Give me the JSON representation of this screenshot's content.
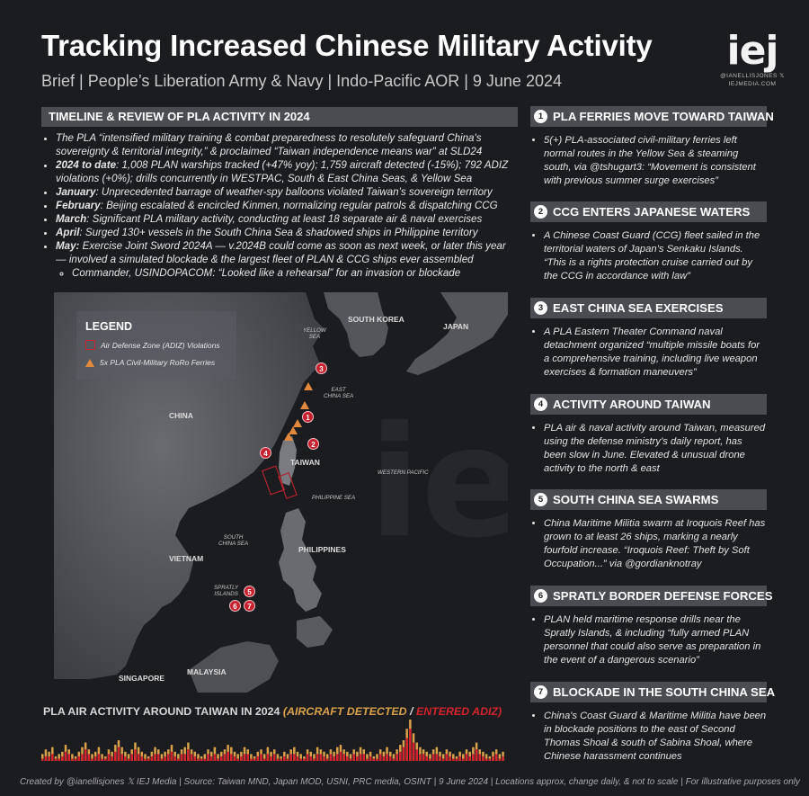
{
  "header": {
    "title": "Tracking Increased Chinese Military Activity",
    "subtitle": "Brief | People’s Liberation Army & Navy | Indo-Pacific AOR | 9 June 2024",
    "logo": {
      "mark": "iej",
      "handle": "@IANELLISJONES 𝕏",
      "site": "IEJMEDIA.COM"
    }
  },
  "timeline": {
    "heading": "TIMELINE & REVIEW OF PLA ACTIVITY IN 2024",
    "intro": "The PLA “intensified military training & combat preparedness to resolutely safeguard China's sovereignty & territorial integrity,” & proclaimed “Taiwan independence means war” at SLD24",
    "items": [
      {
        "label": "2024 to date",
        "text": ": 1,008 PLAN warships tracked (+47% yoy); 1,759 aircraft detected (-15%); 792 ADIZ violations (+0%); drills concurrently in WESTPAC, South & East China Seas, & Yellow Sea"
      },
      {
        "label": "January",
        "text": ": Unprecedented barrage of weather-spy balloons violated Taiwan’s sovereign territory"
      },
      {
        "label": "February",
        "text": ": Beijing escalated & encircled Kinmen, normalizing regular patrols & dispatching CCG"
      },
      {
        "label": "March",
        "text": ": Significant PLA military activity, conducting at least 18 separate air & naval exercises"
      },
      {
        "label": "April",
        "text": ": Surged 130+ vessels in the South China Sea & shadowed ships in Philippine territory"
      },
      {
        "label": "May:",
        "text": " Exercise Joint Sword 2024A — v.2024B could come as soon as next week, or later this year — involved a simulated blockade & the largest fleet of PLAN & CCG ships ever assembled"
      }
    ],
    "sub_item": "Commander, USINDOPACOM: “Looked like a rehearsal” for an invasion or blockade"
  },
  "map": {
    "legend_title": "LEGEND",
    "legend_adiz": "Air Defense Zone (ADIZ) Violations",
    "legend_ferries": "5x PLA Civil-Military RoRo Ferries",
    "labels": {
      "south_korea": "SOUTH KOREA",
      "japan": "JAPAN",
      "china": "CHINA",
      "taiwan": "TAIWAN",
      "vietnam": "VIETNAM",
      "philippines": "PHILIPPINES",
      "singapore": "SINGAPORE",
      "malaysia": "MALAYSIA",
      "yellow_sea": "YELLOW\nSEA",
      "east_china_sea": "EAST\nCHINA SEA",
      "western_pacific": "WESTERN PACIFIC",
      "philippine_sea": "PHILIPPINE SEA",
      "south_china_sea": "SOUTH\nCHINA SEA",
      "spratly": "SPRATLY\nISLANDS"
    },
    "markers": [
      "1",
      "2",
      "3",
      "4",
      "5",
      "6",
      "7"
    ],
    "colors": {
      "marker": "#c8202f",
      "ferry": "#e0893d",
      "adiz": "#b32230"
    }
  },
  "chart_data": {
    "type": "bar",
    "title_main": "PLA AIR ACTIVITY AROUND TAIWAN IN 2024",
    "title_series_1": "AIRCRAFT DETECTED",
    "title_separator": "/",
    "title_series_2": "ENTERED ADIZ",
    "series": [
      {
        "name": "AIRCRAFT DETECTED",
        "color": "#d9a24a",
        "values": [
          3,
          5,
          4,
          6,
          2,
          3,
          4,
          7,
          5,
          3,
          2,
          4,
          6,
          8,
          5,
          3,
          4,
          6,
          3,
          2,
          5,
          4,
          7,
          9,
          6,
          4,
          3,
          5,
          8,
          6,
          4,
          3,
          2,
          4,
          6,
          5,
          3,
          4,
          5,
          7,
          4,
          3,
          5,
          6,
          8,
          5,
          4,
          3,
          2,
          3,
          5,
          4,
          6,
          3,
          4,
          5,
          7,
          6,
          4,
          3,
          4,
          6,
          5,
          3,
          2,
          4,
          5,
          3,
          6,
          4,
          5,
          3,
          2,
          4,
          3,
          5,
          6,
          4,
          3,
          2,
          5,
          4,
          3,
          6,
          5,
          4,
          3,
          5,
          4,
          6,
          7,
          5,
          4,
          3,
          5,
          4,
          6,
          5,
          3,
          4,
          2,
          3,
          5,
          4,
          6,
          4,
          3,
          5,
          7,
          9,
          14,
          18,
          12,
          8,
          6,
          5,
          4,
          3,
          5,
          6,
          4,
          3,
          5,
          4,
          3,
          2,
          4,
          3,
          5,
          4,
          6,
          8,
          5,
          4,
          3,
          2,
          4,
          5,
          3,
          4
        ]
      },
      {
        "name": "ENTERED ADIZ",
        "color": "#d2232f",
        "values": [
          1,
          2,
          2,
          3,
          1,
          1,
          2,
          4,
          3,
          1,
          1,
          2,
          3,
          5,
          3,
          1,
          2,
          3,
          1,
          1,
          3,
          2,
          4,
          6,
          3,
          2,
          1,
          3,
          5,
          3,
          2,
          1,
          1,
          2,
          3,
          3,
          1,
          2,
          3,
          4,
          2,
          1,
          3,
          3,
          5,
          3,
          2,
          1,
          1,
          1,
          3,
          2,
          3,
          1,
          2,
          3,
          4,
          3,
          2,
          1,
          2,
          3,
          3,
          1,
          1,
          2,
          3,
          1,
          3,
          2,
          3,
          1,
          1,
          2,
          1,
          3,
          3,
          2,
          1,
          1,
          3,
          2,
          1,
          3,
          3,
          2,
          1,
          3,
          2,
          3,
          4,
          3,
          2,
          1,
          3,
          2,
          3,
          3,
          1,
          2,
          1,
          1,
          3,
          2,
          3,
          2,
          1,
          3,
          4,
          6,
          10,
          14,
          8,
          5,
          3,
          3,
          2,
          1,
          3,
          3,
          2,
          1,
          3,
          2,
          1,
          1,
          2,
          1,
          3,
          2,
          3,
          5,
          3,
          2,
          1,
          1,
          2,
          3,
          1,
          2
        ]
      }
    ]
  },
  "right_items": [
    {
      "num": "1",
      "title": "PLA FERRIES MOVE TOWARD TAIWAN",
      "text": "5(+) PLA-associated civil-military ferries left normal routes in the Yellow Sea & steaming south, via @tshugart3: “Movement is consistent with previous summer surge exercises”"
    },
    {
      "num": "2",
      "title": "CCG ENTERS JAPANESE WATERS",
      "text": "A Chinese Coast Guard (CCG) fleet sailed in the territorial waters of Japan’s Senkaku Islands. “This is a rights protection cruise carried out by the CCG in accordance with law”"
    },
    {
      "num": "3",
      "title": "EAST CHINA SEA EXERCISES",
      "text": "A PLA Eastern Theater Command naval detachment organized “multiple missile boats for a comprehensive training, including live weapon exercises & formation maneuvers”"
    },
    {
      "num": "4",
      "title": "ACTIVITY AROUND TAIWAN",
      "text": "PLA air & naval activity around Taiwan, measured using the defense ministry’s daily report, has been slow in June. Elevated & unusual drone activity to the north & east"
    },
    {
      "num": "5",
      "title": "SOUTH CHINA SEA SWARMS",
      "text": "China Maritime Militia swarm at Iroquois Reef has grown to at least 26 ships, marking a nearly fourfold increase. “Iroquois Reef: Theft by Soft Occupation...” via @gordianknotray"
    },
    {
      "num": "6",
      "title": "SPRATLY BORDER DEFENSE FORCES",
      "text": "PLAN held maritime response drills near the Spratly Islands, & including “fully armed PLAN personnel that could also serve as preparation in the event of a dangerous scenario”"
    },
    {
      "num": "7",
      "title": "BLOCKADE IN THE SOUTH CHINA SEA",
      "text": "China's Coast Guard & Maritime Militia have been in blockade positions to the east of Second Thomas Shoal & south of Sabina Shoal, where Chinese harassment continues"
    }
  ],
  "footer": "Created by @ianellisjones 𝕏 IEJ Media | Source: Taiwan MND, Japan MOD, USNI, PRC media, OSINT | 9 June 2024 | Locations approx, change daily, & not to scale | For illustrative purposes only"
}
